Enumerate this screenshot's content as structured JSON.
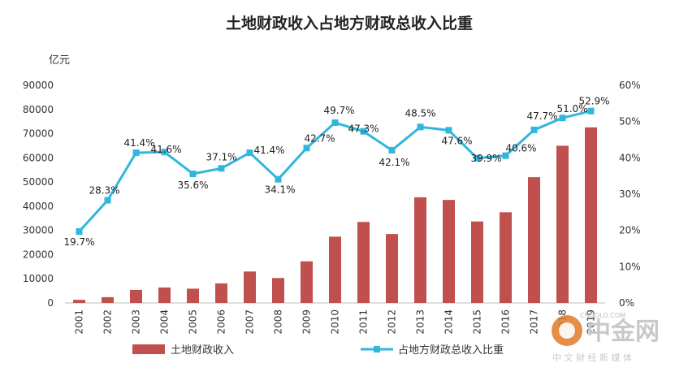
{
  "chart_data": {
    "type": "bar",
    "title": "土地财政收入占地方财政总收入比重",
    "y_left_unit": "亿元",
    "y_left_range": [
      0,
      90000
    ],
    "y_left_ticks": [
      "0",
      "10000",
      "20000",
      "30000",
      "40000",
      "50000",
      "60000",
      "70000",
      "80000",
      "90000"
    ],
    "y_right_range": [
      0,
      60
    ],
    "y_right_ticks": [
      "0%",
      "10%",
      "20%",
      "30%",
      "40%",
      "50%",
      "60%"
    ],
    "categories": [
      "2001",
      "2002",
      "2003",
      "2004",
      "2005",
      "2006",
      "2007",
      "2008",
      "2009",
      "2010",
      "2011",
      "2012",
      "2013",
      "2014",
      "2015",
      "2016",
      "2017",
      "2018",
      "2019"
    ],
    "series": [
      {
        "name": "土地财政收入",
        "type": "bar",
        "axis": "left",
        "color": "#c0504d",
        "values": [
          1300,
          2400,
          5400,
          6400,
          5900,
          8100,
          13000,
          10300,
          17200,
          27400,
          33500,
          28500,
          43700,
          42600,
          33700,
          37500,
          52000,
          65000,
          72600
        ]
      },
      {
        "name": "占地方财政总收入比重",
        "type": "line",
        "axis": "right",
        "color": "#31b6dc",
        "values": [
          19.7,
          28.3,
          41.4,
          41.6,
          35.6,
          37.1,
          41.4,
          34.1,
          42.7,
          49.7,
          47.3,
          42.1,
          48.5,
          47.6,
          39.9,
          40.6,
          47.7,
          51.0,
          52.9
        ],
        "labels": [
          "19.7%",
          "28.3%",
          "41.4%",
          "41.6%",
          "35.6%",
          "37.1%",
          "41.4%",
          "34.1%",
          "42.7%",
          "49.7%",
          "47.3%",
          "42.1%",
          "48.5%",
          "47.6%",
          "39.9%",
          "40.6%",
          "47.7%",
          "51.0%",
          "52.9%"
        ]
      }
    ],
    "legend": "bottom"
  },
  "watermark": {
    "brand": "中金网",
    "slogan": "中 文 财 经 新 媒 体",
    "domain": "CNGOLD.COM"
  }
}
